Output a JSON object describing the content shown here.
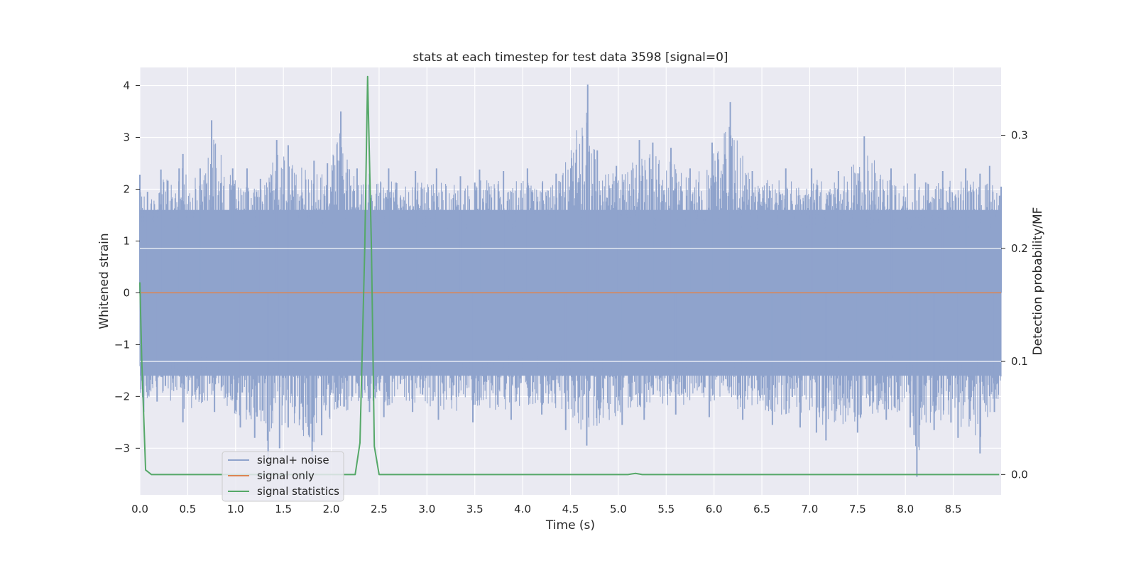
{
  "chart_data": {
    "type": "line",
    "title": "stats at each timestep for test data 3598 [signal=0]",
    "xlabel": "Time (s)",
    "ylabel": "Whitened strain",
    "y2label": "Detection probability/MF",
    "xlim": [
      0.0,
      9.0
    ],
    "ylim": [
      -3.9,
      4.35
    ],
    "y2lim": [
      -0.018,
      0.36
    ],
    "xticks": [
      "0.0",
      "0.5",
      "1.0",
      "1.5",
      "2.0",
      "2.5",
      "3.0",
      "3.5",
      "4.0",
      "4.5",
      "5.0",
      "5.5",
      "6.0",
      "6.5",
      "7.0",
      "7.5",
      "8.0",
      "8.5"
    ],
    "yticks": [
      "4",
      "3",
      "2",
      "1",
      "0",
      "−1",
      "−2",
      "−3"
    ],
    "y2ticks": [
      "0.3",
      "0.2",
      "0.1",
      "0.0"
    ],
    "grid": true,
    "legend_position": "lower-left",
    "series": [
      {
        "name": "signal+ noise",
        "axis": "left",
        "color": "#8fa3cc",
        "band": {
          "upper_typical": 1.6,
          "lower_typical": -1.6
        },
        "peaks": [
          [
            0.0,
            2.28
          ],
          [
            0.08,
            1.95
          ],
          [
            0.22,
            2.38
          ],
          [
            0.41,
            2.4
          ],
          [
            0.45,
            2.68
          ],
          [
            0.63,
            2.4
          ],
          [
            0.75,
            3.33
          ],
          [
            0.97,
            2.4
          ],
          [
            1.12,
            2.4
          ],
          [
            1.26,
            2.2
          ],
          [
            1.43,
            2.95
          ],
          [
            1.55,
            2.85
          ],
          [
            1.82,
            2.55
          ],
          [
            1.96,
            2.5
          ],
          [
            2.1,
            3.5
          ],
          [
            2.27,
            2.4
          ],
          [
            2.4,
            2.3
          ],
          [
            2.6,
            2.4
          ],
          [
            2.88,
            2.35
          ],
          [
            3.1,
            2.4
          ],
          [
            3.35,
            2.25
          ],
          [
            3.55,
            2.38
          ],
          [
            3.8,
            2.35
          ],
          [
            4.05,
            2.4
          ],
          [
            4.35,
            2.3
          ],
          [
            4.68,
            4.02
          ],
          [
            4.78,
            2.75
          ],
          [
            4.98,
            2.45
          ],
          [
            5.22,
            2.95
          ],
          [
            5.36,
            2.9
          ],
          [
            5.55,
            2.8
          ],
          [
            5.75,
            2.4
          ],
          [
            5.98,
            2.9
          ],
          [
            6.17,
            3.68
          ],
          [
            6.4,
            2.35
          ],
          [
            6.75,
            2.4
          ],
          [
            7.02,
            2.4
          ],
          [
            7.3,
            2.35
          ],
          [
            7.57,
            3.02
          ],
          [
            7.85,
            2.4
          ],
          [
            8.1,
            2.3
          ],
          [
            8.39,
            2.35
          ],
          [
            8.63,
            2.4
          ],
          [
            8.78,
            2.3
          ],
          [
            8.88,
            2.45
          ],
          [
            9.0,
            2.05
          ]
        ],
        "troughs": [
          [
            0.04,
            -2.3
          ],
          [
            0.18,
            -2.1
          ],
          [
            0.45,
            -2.5
          ],
          [
            0.78,
            -2.3
          ],
          [
            1.05,
            -2.6
          ],
          [
            1.2,
            -2.8
          ],
          [
            1.34,
            -3.25
          ],
          [
            1.46,
            -3.0
          ],
          [
            1.55,
            -2.6
          ],
          [
            1.8,
            -3.3
          ],
          [
            1.9,
            -2.75
          ],
          [
            2.4,
            -2.3
          ],
          [
            2.55,
            -2.4
          ],
          [
            2.85,
            -2.3
          ],
          [
            3.12,
            -2.45
          ],
          [
            3.48,
            -2.5
          ],
          [
            3.88,
            -2.45
          ],
          [
            4.2,
            -2.35
          ],
          [
            4.45,
            -2.65
          ],
          [
            4.67,
            -2.95
          ],
          [
            5.04,
            -2.55
          ],
          [
            5.27,
            -2.45
          ],
          [
            5.6,
            -2.35
          ],
          [
            5.95,
            -2.4
          ],
          [
            6.3,
            -2.45
          ],
          [
            6.61,
            -2.55
          ],
          [
            6.9,
            -2.6
          ],
          [
            7.07,
            -2.7
          ],
          [
            7.17,
            -2.85
          ],
          [
            7.5,
            -2.7
          ],
          [
            7.8,
            -2.45
          ],
          [
            8.05,
            -2.6
          ],
          [
            8.12,
            -3.55
          ],
          [
            8.3,
            -2.65
          ],
          [
            8.55,
            -2.8
          ],
          [
            8.78,
            -3.1
          ],
          [
            8.93,
            -2.3
          ]
        ]
      },
      {
        "name": "signal only",
        "axis": "left",
        "color": "#dd8452",
        "x": [
          0.0,
          9.0
        ],
        "y": [
          0.0,
          0.0
        ]
      },
      {
        "name": "signal statistics",
        "axis": "right",
        "color": "#55a868",
        "x": [
          0.0,
          0.02,
          0.06,
          0.12,
          2.25,
          2.3,
          2.35,
          2.38,
          2.42,
          2.45,
          2.5,
          5.1,
          5.18,
          5.25,
          8.98
        ],
        "y": [
          0.17,
          0.1,
          0.004,
          0.0,
          0.0,
          0.028,
          0.2,
          0.352,
          0.2,
          0.025,
          0.0,
          0.0,
          0.001,
          0.0,
          0.0
        ]
      }
    ]
  }
}
